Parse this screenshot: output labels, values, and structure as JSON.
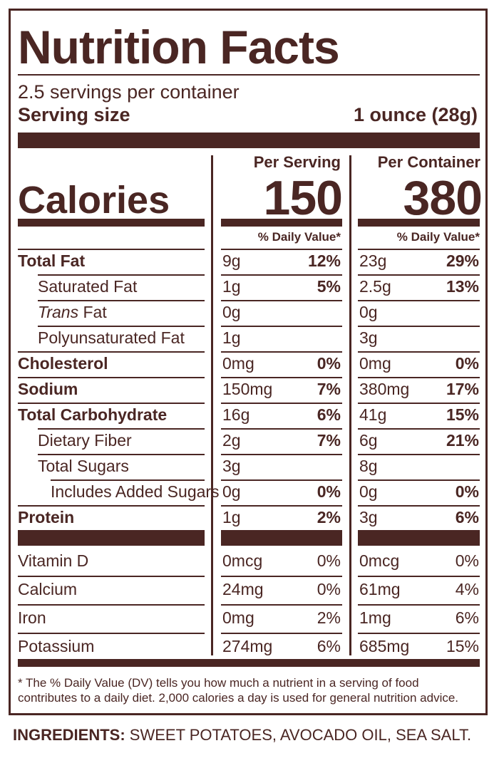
{
  "label": {
    "title": "Nutrition Facts",
    "servings_per_container": "2.5 servings per container",
    "serving_size_label": "Serving size",
    "serving_size_value": "1 ounce (28g)",
    "calories_label": "Calories",
    "per_serving_label": "Per Serving",
    "per_container_label": "Per Container",
    "calories_per_serving": "150",
    "calories_per_container": "380",
    "daily_value_header": "% Daily Value*",
    "nutrients": [
      {
        "name": "Total Fat",
        "bold": true,
        "indent": 0,
        "serving_amount": "9g",
        "serving_dv": "12%",
        "container_amount": "23g",
        "container_dv": "29%"
      },
      {
        "name": "Saturated Fat",
        "bold": false,
        "indent": 1,
        "serving_amount": "1g",
        "serving_dv": "5%",
        "container_amount": "2.5g",
        "container_dv": "13%"
      },
      {
        "name_italic": "Trans",
        "name": " Fat",
        "bold": false,
        "indent": 1,
        "serving_amount": "0g",
        "serving_dv": "",
        "container_amount": "0g",
        "container_dv": ""
      },
      {
        "name": "Polyunsaturated Fat",
        "bold": false,
        "indent": 1,
        "serving_amount": "1g",
        "serving_dv": "",
        "container_amount": "3g",
        "container_dv": ""
      },
      {
        "name": "Cholesterol",
        "bold": true,
        "indent": 0,
        "serving_amount": "0mg",
        "serving_dv": "0%",
        "container_amount": "0mg",
        "container_dv": "0%"
      },
      {
        "name": "Sodium",
        "bold": true,
        "indent": 0,
        "serving_amount": "150mg",
        "serving_dv": "7%",
        "container_amount": "380mg",
        "container_dv": "17%"
      },
      {
        "name": "Total Carbohydrate",
        "bold": true,
        "indent": 0,
        "serving_amount": "16g",
        "serving_dv": "6%",
        "container_amount": "41g",
        "container_dv": "15%"
      },
      {
        "name": "Dietary Fiber",
        "bold": false,
        "indent": 1,
        "serving_amount": "2g",
        "serving_dv": "7%",
        "container_amount": "6g",
        "container_dv": "21%"
      },
      {
        "name": "Total Sugars",
        "bold": false,
        "indent": 1,
        "serving_amount": "3g",
        "serving_dv": "",
        "container_amount": "8g",
        "container_dv": ""
      },
      {
        "name": "Includes Added Sugars",
        "bold": false,
        "indent": 2,
        "serving_amount": "0g",
        "serving_dv": "0%",
        "container_amount": "0g",
        "container_dv": "0%"
      },
      {
        "name": "Protein",
        "bold": true,
        "indent": 0,
        "serving_amount": "1g",
        "serving_dv": "2%",
        "container_amount": "3g",
        "container_dv": "6%"
      }
    ],
    "vitamins": [
      {
        "name": "Vitamin D",
        "serving_amount": "0mcg",
        "serving_dv": "0%",
        "container_amount": "0mcg",
        "container_dv": "0%"
      },
      {
        "name": "Calcium",
        "serving_amount": "24mg",
        "serving_dv": "0%",
        "container_amount": "61mg",
        "container_dv": "4%"
      },
      {
        "name": "Iron",
        "serving_amount": "0mg",
        "serving_dv": "2%",
        "container_amount": "1mg",
        "container_dv": "6%"
      },
      {
        "name": "Potassium",
        "serving_amount": "274mg",
        "serving_dv": "6%",
        "container_amount": "685mg",
        "container_dv": "15%"
      }
    ],
    "footnote": "* The % Daily Value (DV) tells you how much a nutrient in a serving of food contributes to a daily diet. 2,000 calories a day is used for general nutrition advice."
  },
  "ingredients": {
    "label": "INGREDIENTS:",
    "text": " SWEET POTATOES, AVOCADO OIL, SEA SALT."
  },
  "colors": {
    "ink": "#4a2623",
    "background": "#ffffff"
  }
}
